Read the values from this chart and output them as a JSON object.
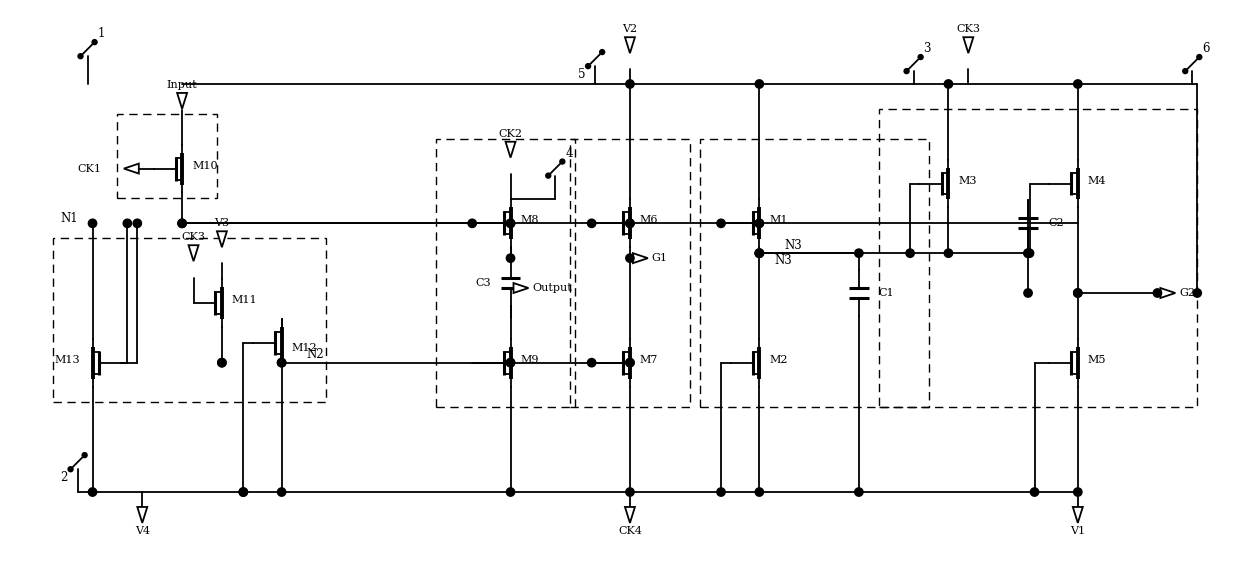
{
  "figsize": [
    12.4,
    5.83
  ],
  "dpi": 100,
  "xlim": [
    0,
    124
  ],
  "ylim": [
    0,
    58.3
  ],
  "lw": 1.3,
  "lw_thick": 2.8,
  "lw_gate": 2.2,
  "N1y": 36,
  "N2y": 22,
  "By": 9,
  "TopRail": 50,
  "G2y": 29,
  "N3y": 33
}
